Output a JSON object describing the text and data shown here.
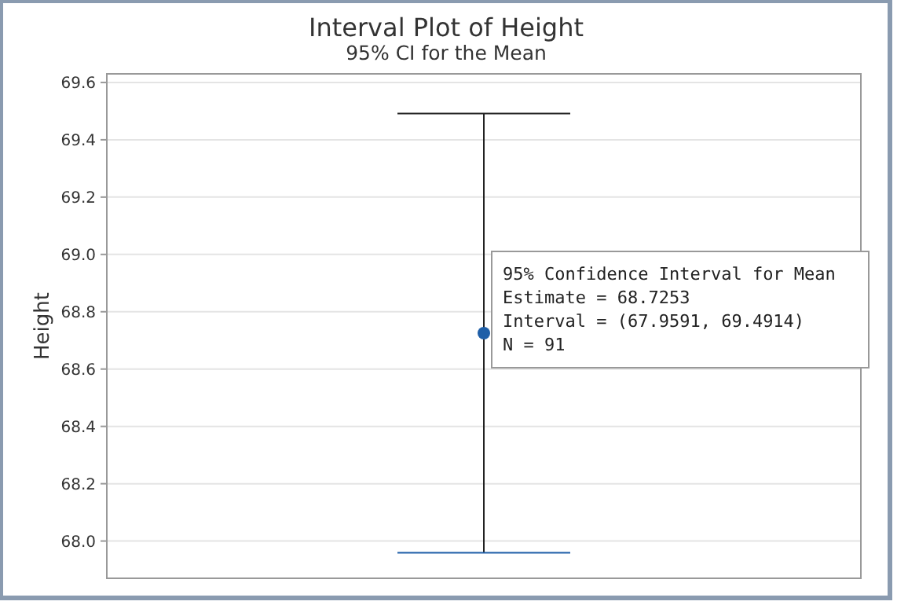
{
  "chart_data": {
    "type": "scatter",
    "title": "Interval Plot of Height",
    "subtitle": "95% CI for the Mean",
    "ylabel": "Height",
    "categories": [
      null
    ],
    "series": [
      {
        "color": "#1f5fa8",
        "values": [
          68.7253
        ],
        "errors": [
          [
            67.9591,
            69.4914
          ]
        ]
      }
    ],
    "ylim": [
      67.87,
      69.63
    ],
    "yticks": [
      {
        "value": 68.0,
        "label": "68.0"
      },
      {
        "value": 68.2,
        "label": "68.2"
      },
      {
        "value": 68.4,
        "label": "68.4"
      },
      {
        "value": 68.6,
        "label": "68.6"
      },
      {
        "value": 68.8,
        "label": "68.8"
      },
      {
        "value": 69.0,
        "label": "69.0"
      },
      {
        "value": 69.2,
        "label": "69.2"
      },
      {
        "value": 69.4,
        "label": "69.4"
      },
      {
        "value": 69.6,
        "label": "69.6"
      }
    ],
    "grid": "y",
    "marker": "circle",
    "annotations": [
      "95% Confidence Interval for Mean",
      "Estimate = 68.7253",
      "Interval = (67.9591, 69.4914)",
      "N = 91"
    ]
  }
}
